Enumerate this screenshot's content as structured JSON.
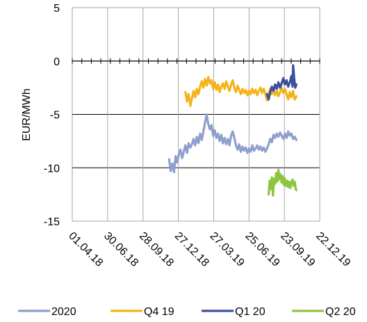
{
  "chart_data": {
    "type": "line",
    "ylabel": "EUR/MWh",
    "ylim": [
      -15,
      5
    ],
    "yticks": [
      "5",
      "0",
      "-5",
      "-10",
      "-15"
    ],
    "xticks": [
      "01.04.18",
      "30.06.18",
      "28.09.18",
      "27.12.18",
      "27.03.19",
      "25.06.19",
      "23.09.19",
      "22.12.19"
    ],
    "xlim_day": [
      0,
      455
    ],
    "grid": true,
    "legend_position": "bottom",
    "series": [
      {
        "name": "2020",
        "color": "#8e9fcd",
        "points": [
          [
            178,
            -9.2
          ],
          [
            181,
            -10.3
          ],
          [
            184,
            -9.6
          ],
          [
            187,
            -10.4
          ],
          [
            190,
            -8.9
          ],
          [
            193,
            -9.5
          ],
          [
            196,
            -8.7
          ],
          [
            199,
            -8.3
          ],
          [
            202,
            -9.1
          ],
          [
            205,
            -8.5
          ],
          [
            208,
            -7.9
          ],
          [
            211,
            -8.6
          ],
          [
            214,
            -7.7
          ],
          [
            217,
            -8.1
          ],
          [
            220,
            -7.8
          ],
          [
            223,
            -7.3
          ],
          [
            226,
            -7.9
          ],
          [
            229,
            -7.1
          ],
          [
            232,
            -7.7
          ],
          [
            235,
            -6.8
          ],
          [
            238,
            -7.4
          ],
          [
            241,
            -6.6
          ],
          [
            244,
            -5.8
          ],
          [
            247,
            -5.0
          ],
          [
            250,
            -5.9
          ],
          [
            253,
            -6.4
          ],
          [
            256,
            -6.0
          ],
          [
            259,
            -7.0
          ],
          [
            262,
            -6.5
          ],
          [
            265,
            -7.2
          ],
          [
            268,
            -6.8
          ],
          [
            271,
            -7.5
          ],
          [
            274,
            -6.9
          ],
          [
            277,
            -7.7
          ],
          [
            280,
            -7.2
          ],
          [
            283,
            -7.8
          ],
          [
            286,
            -7.3
          ],
          [
            289,
            -7.9
          ],
          [
            292,
            -7.0
          ],
          [
            295,
            -6.6
          ],
          [
            298,
            -7.2
          ],
          [
            301,
            -7.9
          ],
          [
            304,
            -8.3
          ],
          [
            307,
            -7.8
          ],
          [
            310,
            -8.5
          ],
          [
            313,
            -8.0
          ],
          [
            316,
            -8.4
          ],
          [
            319,
            -8.1
          ],
          [
            322,
            -8.6
          ],
          [
            325,
            -8.2
          ],
          [
            328,
            -8.5
          ],
          [
            331,
            -7.9
          ],
          [
            334,
            -8.4
          ],
          [
            337,
            -8.2
          ],
          [
            340,
            -7.9
          ],
          [
            343,
            -8.3
          ],
          [
            346,
            -8.0
          ],
          [
            349,
            -8.4
          ],
          [
            352,
            -8.1
          ],
          [
            355,
            -8.5
          ],
          [
            358,
            -8.2
          ],
          [
            361,
            -7.8
          ],
          [
            364,
            -7.3
          ],
          [
            367,
            -7.6
          ],
          [
            370,
            -6.9
          ],
          [
            373,
            -7.2
          ],
          [
            376,
            -6.8
          ],
          [
            379,
            -7.1
          ],
          [
            382,
            -6.7
          ],
          [
            385,
            -7.0
          ],
          [
            388,
            -7.3
          ],
          [
            391,
            -6.8
          ],
          [
            394,
            -7.2
          ],
          [
            397,
            -6.6
          ],
          [
            400,
            -7.0
          ],
          [
            403,
            -6.8
          ],
          [
            406,
            -7.3
          ],
          [
            409,
            -7.1
          ],
          [
            412,
            -7.4
          ]
        ]
      },
      {
        "name": "Q4 19",
        "color": "#f5b319",
        "points": [
          [
            208,
            -2.9
          ],
          [
            211,
            -3.8
          ],
          [
            214,
            -3.1
          ],
          [
            217,
            -4.2
          ],
          [
            220,
            -3.5
          ],
          [
            223,
            -2.8
          ],
          [
            226,
            -3.4
          ],
          [
            229,
            -2.6
          ],
          [
            232,
            -3.1
          ],
          [
            235,
            -2.4
          ],
          [
            238,
            -1.9
          ],
          [
            241,
            -2.5
          ],
          [
            244,
            -1.7
          ],
          [
            247,
            -2.3
          ],
          [
            250,
            -1.5
          ],
          [
            253,
            -2.1
          ],
          [
            256,
            -1.8
          ],
          [
            259,
            -2.6
          ],
          [
            262,
            -2.0
          ],
          [
            265,
            -2.7
          ],
          [
            268,
            -2.2
          ],
          [
            271,
            -2.9
          ],
          [
            274,
            -2.4
          ],
          [
            277,
            -2.1
          ],
          [
            280,
            -2.6
          ],
          [
            283,
            -1.9
          ],
          [
            286,
            -2.4
          ],
          [
            289,
            -2.8
          ],
          [
            292,
            -2.2
          ],
          [
            295,
            -1.8
          ],
          [
            298,
            -2.5
          ],
          [
            301,
            -2.9
          ],
          [
            304,
            -2.3
          ],
          [
            307,
            -2.7
          ],
          [
            310,
            -3.1
          ],
          [
            313,
            -2.6
          ],
          [
            316,
            -3.0
          ],
          [
            319,
            -2.7
          ],
          [
            322,
            -3.2
          ],
          [
            325,
            -2.8
          ],
          [
            328,
            -3.1
          ],
          [
            331,
            -2.6
          ],
          [
            334,
            -3.0
          ],
          [
            337,
            -2.7
          ],
          [
            340,
            -3.2
          ],
          [
            343,
            -2.8
          ],
          [
            346,
            -2.5
          ],
          [
            349,
            -3.0
          ],
          [
            352,
            -2.6
          ],
          [
            355,
            -3.1
          ],
          [
            358,
            -3.7
          ],
          [
            361,
            -3.0
          ],
          [
            364,
            -2.6
          ],
          [
            367,
            -3.1
          ],
          [
            370,
            -2.7
          ],
          [
            373,
            -3.2
          ],
          [
            376,
            -2.8
          ],
          [
            379,
            -3.3
          ],
          [
            382,
            -2.9
          ],
          [
            385,
            -2.5
          ],
          [
            388,
            -3.0
          ],
          [
            391,
            -2.6
          ],
          [
            394,
            -3.1
          ],
          [
            397,
            -3.6
          ],
          [
            400,
            -2.9
          ],
          [
            403,
            -3.4
          ],
          [
            406,
            -2.8
          ],
          [
            409,
            -3.6
          ],
          [
            412,
            -3.3
          ]
        ]
      },
      {
        "name": "Q1 20",
        "color": "#3b4f9a",
        "points": [
          [
            358,
            -3.1
          ],
          [
            361,
            -3.6
          ],
          [
            364,
            -2.9
          ],
          [
            367,
            -2.4
          ],
          [
            370,
            -2.8
          ],
          [
            373,
            -2.2
          ],
          [
            376,
            -2.6
          ],
          [
            379,
            -2.0
          ],
          [
            382,
            -2.5
          ],
          [
            385,
            -2.1
          ],
          [
            388,
            -1.6
          ],
          [
            391,
            -2.2
          ],
          [
            394,
            -1.8
          ],
          [
            397,
            -2.4
          ],
          [
            400,
            -2.0
          ],
          [
            403,
            -1.4
          ],
          [
            405,
            -2.4
          ],
          [
            406,
            -0.4
          ],
          [
            408,
            -1.6
          ],
          [
            410,
            -2.5
          ],
          [
            412,
            -2.2
          ]
        ]
      },
      {
        "name": "Q2 20",
        "color": "#8cc63f",
        "points": [
          [
            361,
            -12.5
          ],
          [
            363,
            -11.2
          ],
          [
            365,
            -12.0
          ],
          [
            367,
            -10.9
          ],
          [
            369,
            -12.6
          ],
          [
            371,
            -11.0
          ],
          [
            373,
            -11.5
          ],
          [
            375,
            -10.5
          ],
          [
            377,
            -11.3
          ],
          [
            379,
            -10.2
          ],
          [
            381,
            -11.1
          ],
          [
            383,
            -10.6
          ],
          [
            385,
            -11.4
          ],
          [
            387,
            -10.8
          ],
          [
            389,
            -11.6
          ],
          [
            391,
            -11.0
          ],
          [
            393,
            -11.7
          ],
          [
            395,
            -11.2
          ],
          [
            397,
            -11.8
          ],
          [
            399,
            -11.3
          ],
          [
            401,
            -11.9
          ],
          [
            403,
            -11.4
          ],
          [
            405,
            -11.1
          ],
          [
            407,
            -11.7
          ],
          [
            409,
            -11.3
          ],
          [
            411,
            -12.0
          ],
          [
            412,
            -12.1
          ]
        ]
      }
    ]
  },
  "colors": {
    "grid": "#a6a6a6",
    "axis": "#000000",
    "background": "#ffffff"
  }
}
